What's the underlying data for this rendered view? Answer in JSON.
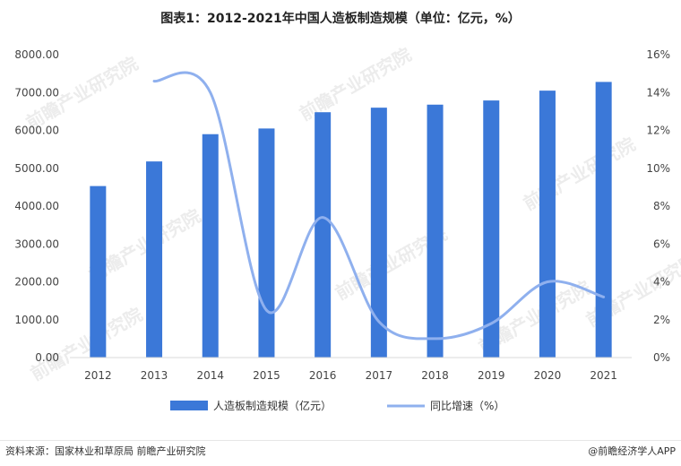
{
  "title": "图表1：2012-2021年中国人造板制造规模（单位：亿元，%）",
  "source": "资料来源：国家林业和草原局 前瞻产业研究院",
  "brand": "@前瞻经济学人APP",
  "watermark": "前瞻产业研究院",
  "colors": {
    "bar": "#3b78d8",
    "line": "#8fb0ee",
    "axis": "#d9d9d9"
  },
  "chart_data": {
    "type": "bar",
    "categories": [
      "2012",
      "2013",
      "2014",
      "2015",
      "2016",
      "2017",
      "2018",
      "2019",
      "2020",
      "2021"
    ],
    "series": [
      {
        "name": "人造板制造规模（亿元）",
        "type": "bar",
        "axis": "left",
        "values": [
          4530,
          5180,
          5900,
          6050,
          6480,
          6600,
          6680,
          6790,
          7050,
          7280
        ]
      },
      {
        "name": "同比增速（%）",
        "type": "line",
        "axis": "right",
        "values": [
          null,
          14.6,
          14.0,
          2.5,
          7.4,
          1.9,
          1.0,
          1.8,
          4.0,
          3.2
        ]
      }
    ],
    "y_left": {
      "min": 0,
      "max": 8000,
      "step": 1000,
      "tick_labels": [
        "0.00",
        "1000.00",
        "2000.00",
        "3000.00",
        "4000.00",
        "5000.00",
        "6000.00",
        "7000.00",
        "8000.00"
      ]
    },
    "y_right": {
      "min": 0,
      "max": 16,
      "step": 2,
      "tick_labels": [
        "0%",
        "2%",
        "4%",
        "6%",
        "8%",
        "10%",
        "12%",
        "14%",
        "16%"
      ]
    },
    "grid": false,
    "legend_position": "bottom"
  }
}
